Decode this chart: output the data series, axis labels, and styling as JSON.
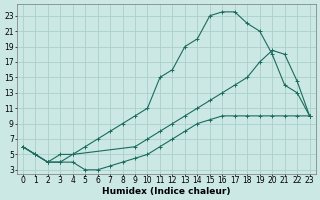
{
  "bg_color": "#cce8e5",
  "line_color": "#1a6b5e",
  "grid_color": "#aacfca",
  "xlabel": "Humidex (Indice chaleur)",
  "xlabel_fontsize": 6.5,
  "tick_fontsize": 5.5,
  "xmin": -0.5,
  "xmax": 23.5,
  "ymin": 2.5,
  "ymax": 24.5,
  "yticks": [
    3,
    5,
    7,
    9,
    11,
    13,
    15,
    17,
    19,
    21,
    23
  ],
  "xticks": [
    0,
    1,
    2,
    3,
    4,
    5,
    6,
    7,
    8,
    9,
    10,
    11,
    12,
    13,
    14,
    15,
    16,
    17,
    18,
    19,
    20,
    21,
    22,
    23
  ],
  "line_upper_x": [
    0,
    1,
    2,
    3,
    4,
    5,
    6,
    7,
    8,
    9,
    10,
    11,
    12,
    13,
    14,
    15,
    16,
    17,
    18,
    19,
    20,
    21,
    22,
    23
  ],
  "line_upper_y": [
    6,
    5,
    4,
    5,
    5,
    6,
    7,
    8,
    9,
    10,
    11,
    15,
    16,
    19,
    20,
    23,
    23.5,
    23.5,
    22,
    21,
    18,
    14,
    13,
    10
  ],
  "line_lower_x": [
    0,
    1,
    2,
    3,
    4,
    5,
    6,
    7,
    8,
    9,
    10,
    11,
    12,
    13,
    14,
    15,
    16,
    17,
    18,
    19,
    20,
    21,
    22,
    23
  ],
  "line_lower_y": [
    6,
    5,
    4,
    4,
    4,
    3,
    3,
    3.5,
    4,
    4.5,
    5,
    6,
    7,
    8,
    9,
    9.5,
    10,
    10,
    10,
    10,
    10,
    10,
    10,
    10
  ],
  "line_mid_x": [
    0,
    1,
    2,
    3,
    4,
    9,
    10,
    11,
    12,
    13,
    14,
    15,
    16,
    17,
    18,
    19,
    20,
    21,
    22,
    23
  ],
  "line_mid_y": [
    6,
    5,
    4,
    4,
    5,
    6,
    7,
    8,
    9,
    10,
    11,
    12,
    13,
    14,
    15,
    17,
    18.5,
    18,
    14.5,
    10
  ]
}
